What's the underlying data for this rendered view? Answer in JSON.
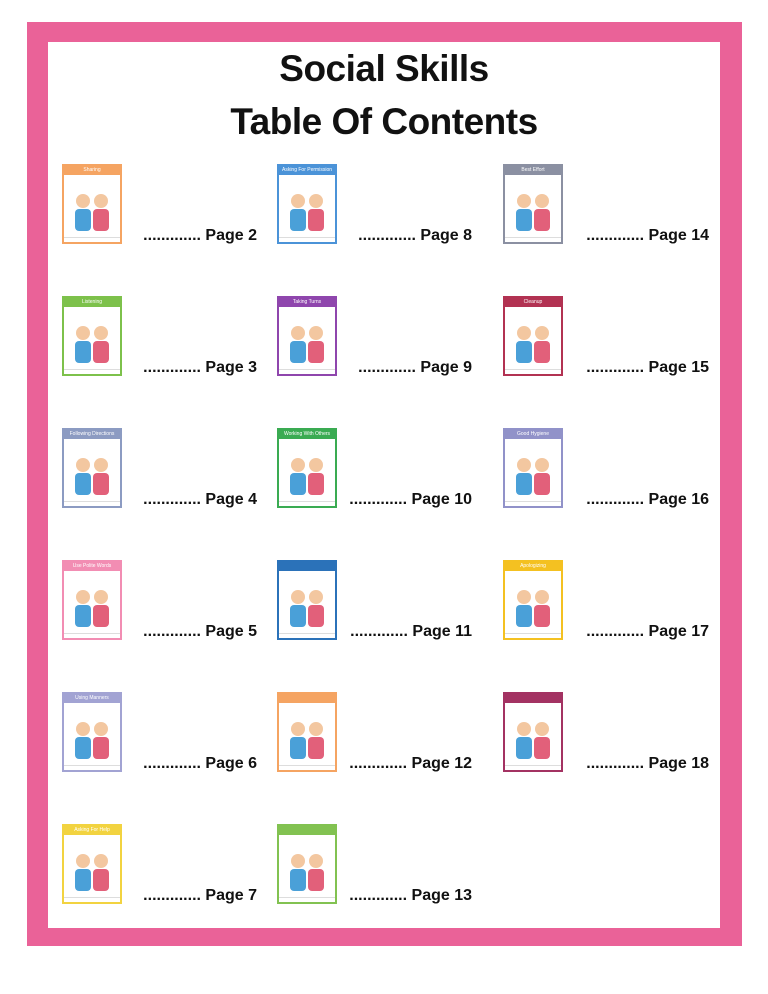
{
  "title_line1": "Social Skills",
  "title_line2": "Table Of Contents",
  "border_color": "#ea6298",
  "columns": [
    [
      {
        "card_title": "Sharing",
        "color": "#f5a462",
        "entry": "............. Page 2"
      },
      {
        "card_title": "Listening",
        "color": "#7dc14b",
        "entry": "............. Page 3"
      },
      {
        "card_title": "Following Directions",
        "color": "#8c9bc2",
        "entry": "............. Page 4"
      },
      {
        "card_title": "Use Polite Words",
        "color": "#f28db3",
        "entry": "............. Page 5"
      },
      {
        "card_title": "Using Manners",
        "color": "#a2a3d3",
        "entry": "............. Page 6"
      },
      {
        "card_title": "Asking For Help",
        "color": "#f2d340",
        "entry": "............. Page 7"
      }
    ],
    [
      {
        "card_title": "Asking For Permission",
        "color": "#4b93d8",
        "entry": "............. Page 8"
      },
      {
        "card_title": "Taking Turns",
        "color": "#8f46ad",
        "entry": "............. Page 9"
      },
      {
        "card_title": "Working With Others",
        "color": "#3aab52",
        "entry": "............. Page 10"
      },
      {
        "card_title": "",
        "color": "#2b72b9",
        "entry": "............. Page 11"
      },
      {
        "card_title": "",
        "color": "#f5a462",
        "entry": "............. Page 12"
      },
      {
        "card_title": "",
        "color": "#82c251",
        "entry": "............. Page 13"
      }
    ],
    [
      {
        "card_title": "Best Effort",
        "color": "#8b90a2",
        "entry": "............. Page 14"
      },
      {
        "card_title": "Cleanup",
        "color": "#b23252",
        "entry": "............. Page 15"
      },
      {
        "card_title": "Good Hygiene",
        "color": "#9192c9",
        "entry": "............. Page 16"
      },
      {
        "card_title": "Apologizing",
        "color": "#f4c121",
        "entry": "............. Page 17"
      },
      {
        "card_title": "",
        "color": "#a33262",
        "entry": "............. Page 18"
      }
    ]
  ]
}
